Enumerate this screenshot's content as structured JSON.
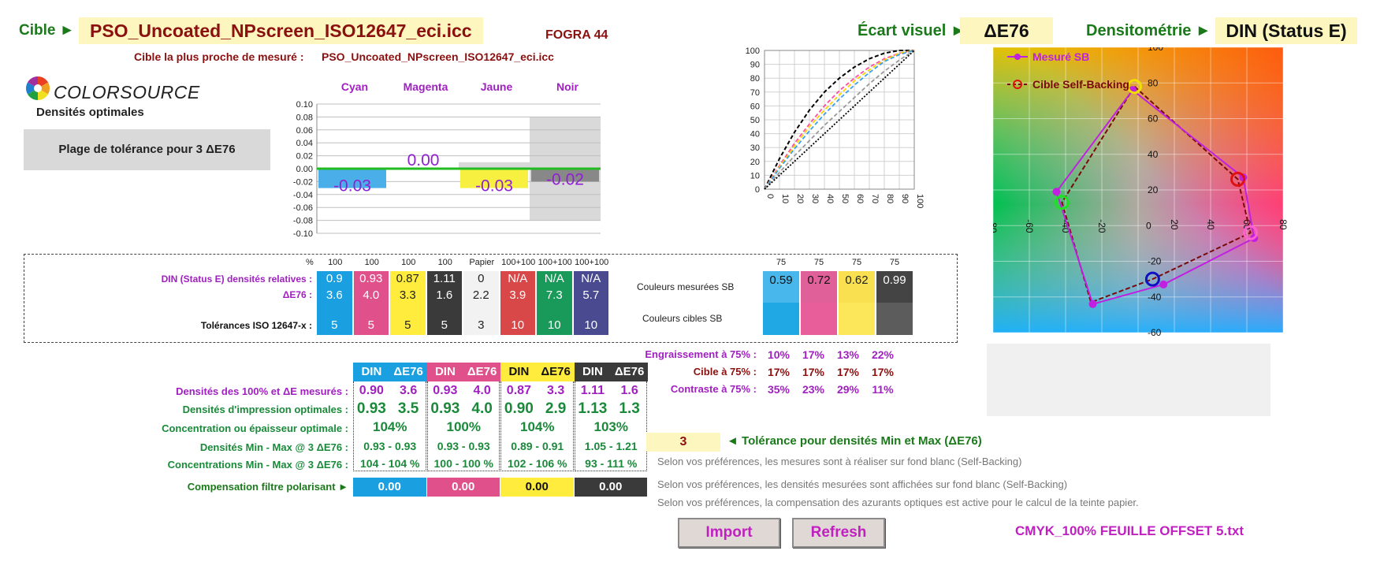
{
  "header": {
    "cible_label": "Cible ►",
    "cible_value": "PSO_Uncoated_NPscreen_ISO12647_eci.icc",
    "fogra": "FOGRA 44",
    "closest_label": "Cible la plus proche de mesuré :",
    "closest_value": "PSO_Uncoated_NPscreen_ISO12647_eci.icc",
    "ecart_label": "Écart visuel ►",
    "ecart_value": "ΔE76",
    "densito_label": "Densitométrie ►",
    "densito_value": "DIN (Status E)"
  },
  "brand": {
    "logo_text": "COLORSOURCE",
    "subtitle": "Densités optimales",
    "tolerance_box": "Plage de tolérance pour 3 ΔE76"
  },
  "bar_chart": {
    "headers": [
      "Cyan",
      "Magenta",
      "Jaune",
      "Noir"
    ],
    "yticks": [
      "0.10",
      "0.08",
      "0.06",
      "0.04",
      "0.02",
      "0.00",
      "-0.02",
      "-0.04",
      "-0.06",
      "-0.08",
      "-0.10"
    ],
    "value_labels": [
      "-0.03",
      "0.00",
      "-0.03",
      "-0.02"
    ]
  },
  "chart_data": [
    {
      "type": "bar",
      "categories": [
        "Cyan",
        "Magenta",
        "Jaune",
        "Noir"
      ],
      "values": [
        -0.03,
        0.0,
        -0.03,
        -0.02
      ],
      "ylim": [
        -0.1,
        0.1
      ],
      "colors": [
        "#4aaee8",
        "#ffffff",
        "#f8f040",
        "#888888"
      ]
    },
    {
      "type": "line",
      "xlim": [
        0,
        100
      ],
      "ylim": [
        0,
        100
      ],
      "xticks": [
        0,
        10,
        20,
        30,
        40,
        50,
        60,
        70,
        80,
        90,
        100
      ],
      "yticks": [
        0,
        10,
        20,
        30,
        40,
        50,
        60,
        70,
        80,
        90,
        100
      ],
      "series": [
        {
          "color": "#000000",
          "x": [
            0,
            10,
            20,
            30,
            40,
            50,
            60,
            70,
            80,
            90,
            100
          ],
          "y": [
            0,
            22,
            41,
            57,
            70,
            80,
            88,
            94,
            98,
            100,
            100
          ]
        },
        {
          "color": "#ff4da6",
          "x": [
            0,
            10,
            20,
            30,
            40,
            50,
            60,
            70,
            80,
            90,
            100
          ],
          "y": [
            0,
            17,
            33,
            47,
            60,
            71,
            80,
            88,
            94,
            98,
            100
          ]
        },
        {
          "color": "#ffd200",
          "x": [
            0,
            10,
            20,
            30,
            40,
            50,
            60,
            70,
            80,
            90,
            100
          ],
          "y": [
            0,
            16,
            31,
            45,
            57,
            68,
            78,
            86,
            93,
            98,
            100
          ]
        },
        {
          "color": "#3aa0e8",
          "x": [
            0,
            10,
            20,
            30,
            40,
            50,
            60,
            70,
            80,
            90,
            100
          ],
          "y": [
            0,
            15,
            29,
            42,
            54,
            65,
            75,
            84,
            92,
            97,
            100
          ]
        },
        {
          "color": "#999999",
          "x": [
            0,
            10,
            20,
            30,
            40,
            50,
            60,
            70,
            80,
            90,
            100
          ],
          "y": [
            0,
            12,
            24,
            35,
            46,
            56,
            66,
            76,
            85,
            93,
            100
          ]
        },
        {
          "color": "#000000",
          "x": [
            0,
            100
          ],
          "y": [
            0,
            100
          ]
        }
      ]
    },
    {
      "type": "scatter",
      "xlim": [
        -80,
        80
      ],
      "ylim": [
        -60,
        100
      ],
      "xticks": [
        -80,
        -60,
        -40,
        -20,
        0,
        20,
        40,
        60,
        80
      ],
      "yticks": [
        -60,
        -40,
        -20,
        0,
        20,
        40,
        60,
        80,
        100
      ],
      "series": [
        {
          "name": "Mesuré SB",
          "color": "#c020e0",
          "x": [
            -3,
            58,
            64,
            14,
            -25,
            -45,
            -3
          ],
          "y": [
            76,
            27,
            -7,
            -33,
            -44,
            19,
            76
          ]
        },
        {
          "name": "Cible Self-Backing",
          "color": "#7a0a0a",
          "x": [
            -2,
            55,
            62,
            8,
            -26,
            -42,
            -2
          ],
          "y": [
            78,
            26,
            -4,
            -30,
            -43,
            13,
            78
          ]
        }
      ],
      "markers": [
        {
          "x": -2,
          "y": 78,
          "color": "#f0e000"
        },
        {
          "x": 55,
          "y": 26,
          "color": "#e01010"
        },
        {
          "x": 62,
          "y": -4,
          "color": "#ff60d0"
        },
        {
          "x": 8,
          "y": -30,
          "color": "#1010c0"
        },
        {
          "x": -42,
          "y": 13,
          "color": "#20e020"
        }
      ]
    }
  ],
  "dashed_table": {
    "pct_label": "%",
    "pct_cols": [
      "100",
      "100",
      "100",
      "100",
      "Papier",
      "100+100",
      "100+100",
      "100+100"
    ],
    "row1_label": "DIN (Status E) densités relatives :",
    "row2_label": "ΔE76 :",
    "row3_label": "Tolérances ISO 12647-x :",
    "din": [
      "0.9",
      "0.93",
      "0.87",
      "1.11",
      "0",
      "N/A",
      "N/A",
      "N/A"
    ],
    "de": [
      "3.6",
      "4.0",
      "3.3",
      "1.6",
      "2.2",
      "3.9",
      "7.3",
      "5.7"
    ],
    "tol": [
      "5",
      "5",
      "5",
      "5",
      "3",
      "10",
      "10",
      "10"
    ],
    "col_colors": [
      "#1aa0e0",
      "#e0508a",
      "#ffec3c",
      "#3a3a3a",
      "#f2f2f2",
      "#d84848",
      "#1a9a5a",
      "#4a4a90"
    ],
    "mesurees_label": "Couleurs mesurées SB",
    "cibles_label": "Couleurs cibles SB",
    "pct75": [
      "75",
      "75",
      "75",
      "75"
    ],
    "meas75": [
      "0.59",
      "0.72",
      "0.62",
      "0.99"
    ],
    "meas75_colors": [
      "#48b8ec",
      "#e0609a",
      "#f8e050",
      "#444444"
    ],
    "cible75_colors": [
      "#20a8e4",
      "#e85e9a",
      "#fce65a",
      "#5c5c5c"
    ]
  },
  "engraissement": {
    "row1_label": "Engraissement à 75% :",
    "row1": [
      "10%",
      "17%",
      "13%",
      "22%"
    ],
    "row2_label": "Cible à 75% :",
    "row2": [
      "17%",
      "17%",
      "17%",
      "17%"
    ],
    "row3_label": "Contraste à 75% :",
    "row3": [
      "35%",
      "23%",
      "29%",
      "11%"
    ]
  },
  "lower_table": {
    "hdr_din": "DIN",
    "hdr_de": "ΔE76",
    "hdr_colors": [
      "#1aa0e0",
      "#e0508a",
      "#ffec3c",
      "#3a3a3a"
    ],
    "labels": [
      "Densités des 100% et ΔE mesurés :",
      "Densités d'impression optimales :",
      "Concentration ou épaisseur optimale :",
      "Densités Min - Max @ 3 ΔE76 :",
      "Concentrations Min - Max  @ 3 ΔE76 :"
    ],
    "mesures": [
      [
        "0.90",
        "3.6"
      ],
      [
        "0.93",
        "4.0"
      ],
      [
        "0.87",
        "3.3"
      ],
      [
        "1.11",
        "1.6"
      ]
    ],
    "optimales": [
      [
        "0.93",
        "3.5"
      ],
      [
        "0.93",
        "4.0"
      ],
      [
        "0.90",
        "2.9"
      ],
      [
        "1.13",
        "1.3"
      ]
    ],
    "concentration": [
      "104%",
      "100%",
      "104%",
      "103%"
    ],
    "minmax_dens": [
      "0.93 - 0.93",
      "0.93 - 0.93",
      "0.89 - 0.91",
      "1.05 - 1.21"
    ],
    "minmax_conc": [
      "104 - 104 %",
      "100 - 100 %",
      "102 - 106 %",
      "93 - 111 %"
    ],
    "polar_label": "Compensation filtre polarisant ►",
    "polar_values": [
      "0.00",
      "0.00",
      "0.00",
      "0.00"
    ],
    "polar_colors": [
      "#1aa0e0",
      "#e0508a",
      "#ffec3c",
      "#3a3a3a"
    ]
  },
  "tolerance": {
    "value": "3",
    "label": "◄ Tolérance pour densités Min et Max (ΔE76)"
  },
  "notes": [
    "Selon vos préférences, les mesures sont à réaliser sur fond blanc (Self-Backing)",
    "Selon vos préférences, les densités mesurées sont affichées sur fond blanc (Self-Backing)",
    "Selon vos préférences, la compensation des azurants optiques est active pour le calcul de la teinte papier."
  ],
  "buttons": {
    "import": "Import",
    "refresh": "Refresh"
  },
  "file_name": "CMYK_100% FEUILLE OFFSET 5.txt",
  "legend": {
    "mesure": "Mesuré SB",
    "cible": "Cible Self-Backing"
  }
}
